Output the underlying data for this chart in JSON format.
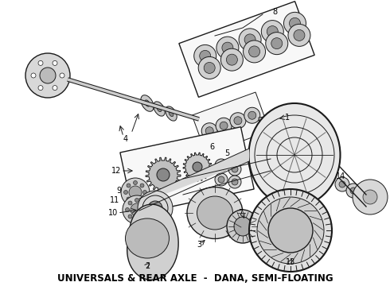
{
  "title": "UNIVERSALS & REAR AXLE  -  DANA, SEMI-FLOATING",
  "title_fontsize": 8.5,
  "title_fontweight": "bold",
  "bg_color": "#ffffff",
  "fig_width": 4.9,
  "fig_height": 3.6,
  "dpi": 100,
  "lc": "#1a1a1a",
  "fc_light": "#e0e0e0",
  "fc_mid": "#c0c0c0",
  "fc_dark": "#888888",
  "fc_white": "#f8f8f8"
}
